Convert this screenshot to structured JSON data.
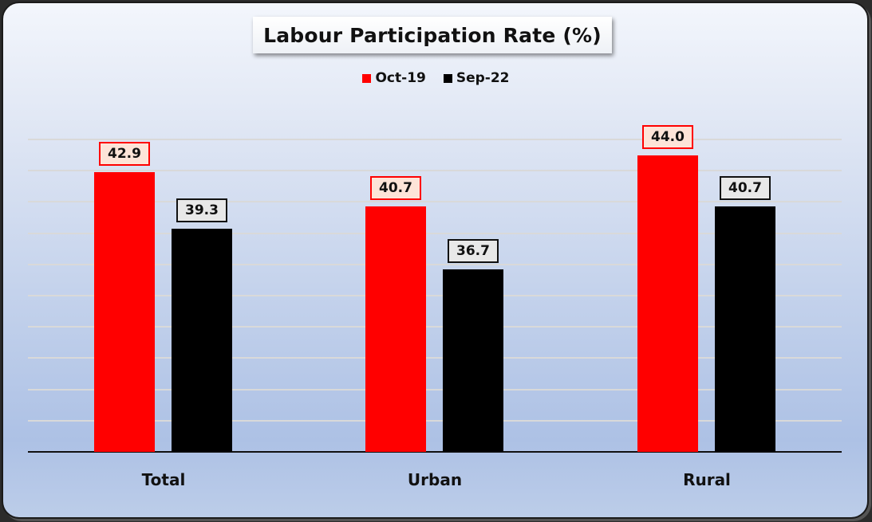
{
  "chart_data": {
    "type": "bar",
    "title": "Labour Participation Rate (%)",
    "categories": [
      "Total",
      "Urban",
      "Rural"
    ],
    "series": [
      {
        "name": "Oct-19",
        "color": "#ff0000",
        "values": [
          42.9,
          40.7,
          44.0
        ],
        "labels": [
          "42.9",
          "40.7",
          "44.0"
        ]
      },
      {
        "name": "Sep-22",
        "color": "#000000",
        "values": [
          39.3,
          36.7,
          40.7
        ],
        "labels": [
          "39.3",
          "36.7",
          "40.7"
        ]
      }
    ],
    "xlabel": "",
    "ylabel": "",
    "ylim": [
      25,
      45
    ],
    "grid": true,
    "legend_position": "top",
    "data_labels": true
  }
}
